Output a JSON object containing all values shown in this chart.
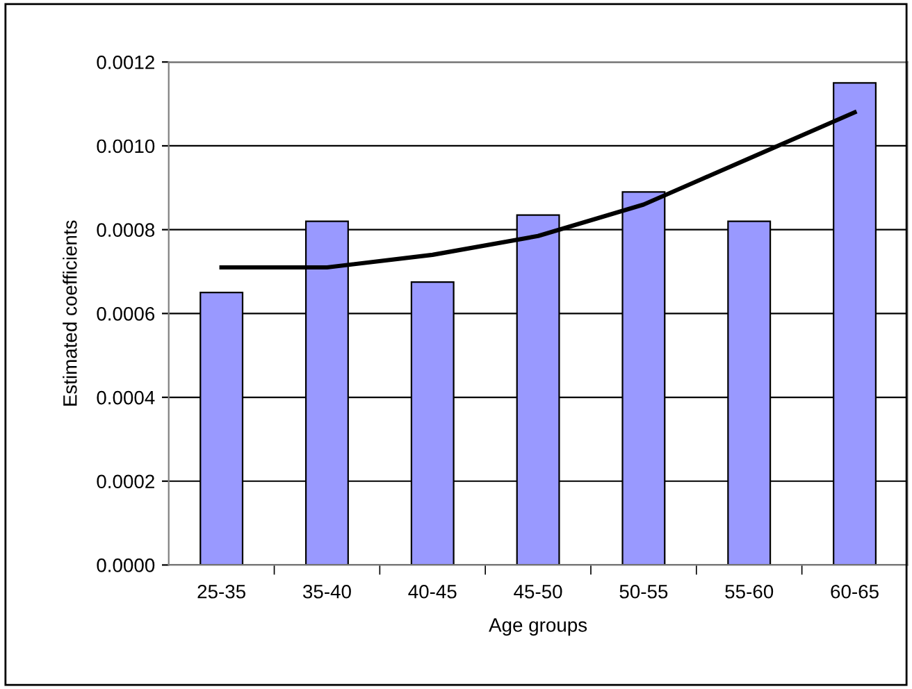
{
  "chart_data": {
    "type": "bar",
    "xlabel": "Age groups",
    "ylabel": "Estimated coefficients",
    "categories": [
      "25-35",
      "35-40",
      "40-45",
      "45-50",
      "50-55",
      "55-60",
      "60-65"
    ],
    "series": [
      {
        "color": "#9999ff",
        "values": [
          0.00065,
          0.00082,
          0.000675,
          0.000835,
          0.00089,
          0.00082,
          0.00115
        ]
      },
      {
        "type": "line",
        "color": "#000000",
        "values": [
          0.00071,
          0.00071,
          0.00074,
          0.000785,
          0.00086,
          0.00097,
          0.00108
        ]
      }
    ],
    "ylim": [
      0,
      0.0012
    ],
    "yticks": [
      {
        "value": 0,
        "label": "0.0000"
      },
      {
        "value": 0.0002,
        "label": "0.0002"
      },
      {
        "value": 0.0004,
        "label": "0.0004"
      },
      {
        "value": 0.0006,
        "label": "0.0006"
      },
      {
        "value": 0.0008,
        "label": "0.0008"
      },
      {
        "value": 0.001,
        "label": "0.0010"
      },
      {
        "value": 0.0012,
        "label": "0.0012"
      }
    ],
    "grid": "y",
    "legend": false
  }
}
